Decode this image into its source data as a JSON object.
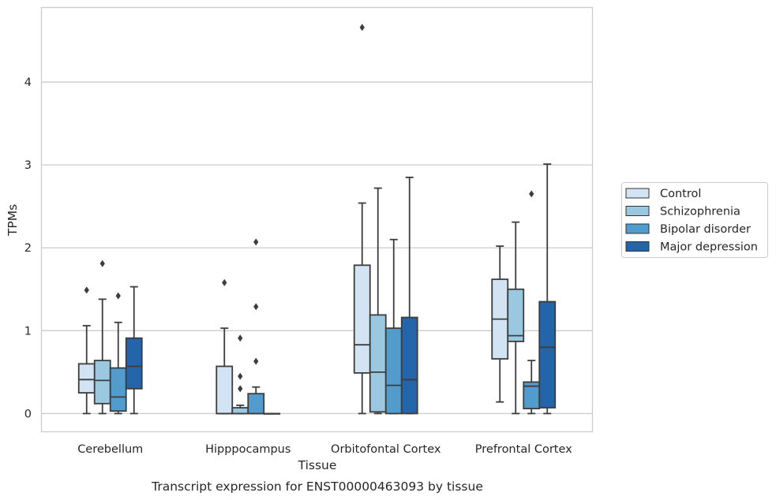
{
  "chart_data": {
    "type": "box",
    "title": "",
    "caption": "Transcript expression for ENST00000463093 by tissue",
    "xlabel": "Tissue",
    "ylabel": "TPMs",
    "categories": [
      "Cerebellum",
      "Hipppocampus",
      "Orbitofontal Cortex",
      "Prefrontal Cortex"
    ],
    "y_ticks": [
      "0",
      "1",
      "2",
      "3",
      "4"
    ],
    "ylim": [
      -0.22,
      4.9
    ],
    "grid": "horizontal",
    "legend_position": "right",
    "series": [
      {
        "name": "Control",
        "color": "#d2e3f3",
        "boxes": [
          {
            "low": 0.0,
            "q1": 0.25,
            "median": 0.41,
            "q3": 0.6,
            "high": 1.06,
            "outliers": [
              1.49
            ]
          },
          {
            "low": 0.0,
            "q1": 0.0,
            "median": 0.0,
            "q3": 0.57,
            "high": 1.03,
            "outliers": [
              1.58
            ]
          },
          {
            "low": 0.0,
            "q1": 0.49,
            "median": 0.83,
            "q3": 1.79,
            "high": 2.54,
            "outliers": [
              4.66
            ]
          },
          {
            "low": 0.14,
            "q1": 0.66,
            "median": 1.14,
            "q3": 1.62,
            "high": 2.02,
            "outliers": []
          }
        ]
      },
      {
        "name": "Schizophrenia",
        "color": "#9ac8e0",
        "boxes": [
          {
            "low": 0.0,
            "q1": 0.12,
            "median": 0.4,
            "q3": 0.64,
            "high": 1.38,
            "outliers": [
              1.81
            ]
          },
          {
            "low": 0.0,
            "q1": 0.0,
            "median": 0.0,
            "q3": 0.07,
            "high": 0.1,
            "outliers": [
              0.3,
              0.45,
              0.91
            ]
          },
          {
            "low": 0.0,
            "q1": 0.02,
            "median": 0.5,
            "q3": 1.19,
            "high": 2.72,
            "outliers": []
          },
          {
            "low": 0.0,
            "q1": 0.87,
            "median": 0.94,
            "q3": 1.5,
            "high": 2.31,
            "outliers": []
          }
        ]
      },
      {
        "name": "Bipolar disorder",
        "color": "#519ccc",
        "boxes": [
          {
            "low": 0.0,
            "q1": 0.03,
            "median": 0.2,
            "q3": 0.55,
            "high": 1.1,
            "outliers": [
              1.42
            ]
          },
          {
            "low": 0.0,
            "q1": 0.0,
            "median": 0.0,
            "q3": 0.24,
            "high": 0.32,
            "outliers": [
              0.63,
              1.29,
              2.07
            ]
          },
          {
            "low": 0.0,
            "q1": 0.0,
            "median": 0.34,
            "q3": 1.03,
            "high": 2.1,
            "outliers": []
          },
          {
            "low": 0.0,
            "q1": 0.06,
            "median": 0.33,
            "q3": 0.38,
            "high": 0.64,
            "outliers": [
              2.65
            ]
          }
        ]
      },
      {
        "name": "Major depression",
        "color": "#2464a8",
        "boxes": [
          {
            "low": 0.0,
            "q1": 0.3,
            "median": 0.57,
            "q3": 0.91,
            "high": 1.53,
            "outliers": []
          },
          {
            "low": 0.0,
            "q1": 0.0,
            "median": 0.0,
            "q3": 0.0,
            "high": 0.0,
            "outliers": []
          },
          {
            "low": 0.0,
            "q1": 0.0,
            "median": 0.41,
            "q3": 1.16,
            "high": 2.85,
            "outliers": []
          },
          {
            "low": 0.0,
            "q1": 0.07,
            "median": 0.8,
            "q3": 1.35,
            "high": 3.01,
            "outliers": []
          }
        ]
      }
    ]
  }
}
